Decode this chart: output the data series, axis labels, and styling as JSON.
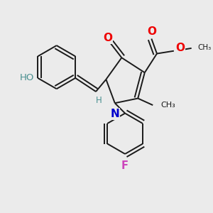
{
  "background_color": "#ebebeb",
  "bond_color": "#1a1a1a",
  "atom_colors": {
    "O": "#ee0000",
    "N": "#0000cc",
    "F": "#cc44bb",
    "HO": "#4a9090",
    "H": "#4a9090",
    "C": "#1a1a1a"
  },
  "font_size": 9,
  "fig_size": [
    3.0,
    3.0
  ],
  "dpi": 100
}
